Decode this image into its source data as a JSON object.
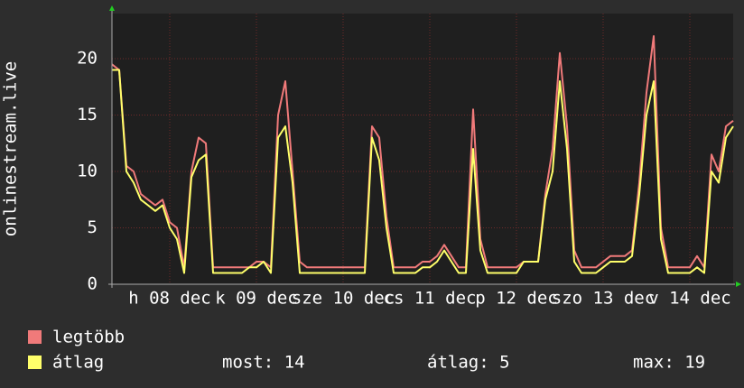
{
  "chart_data": {
    "type": "line",
    "y_label": "onlinestream.live",
    "x": [
      -4,
      -2,
      0,
      2,
      4,
      6,
      8,
      10,
      12,
      14,
      16,
      18,
      20,
      22,
      24,
      26,
      28,
      30,
      32,
      34,
      36,
      38,
      40,
      42,
      44,
      46,
      48,
      50,
      52,
      54,
      56,
      58,
      60,
      62,
      64,
      66,
      68,
      70,
      72,
      74,
      76,
      78,
      80,
      82,
      84,
      86,
      88,
      90,
      92,
      94,
      96,
      98,
      100,
      102,
      104,
      106,
      108,
      110,
      112,
      114,
      116,
      118,
      120,
      122,
      124,
      126,
      128,
      130,
      132,
      134,
      136,
      138,
      140,
      142,
      144,
      146,
      148,
      150,
      152,
      154,
      156,
      158,
      160,
      162,
      164,
      166,
      168
    ],
    "series": [
      {
        "name": "legtöbb",
        "color": "#f07a7a",
        "values": [
          19.5,
          19,
          10.5,
          10,
          8,
          7.5,
          7,
          7.5,
          5.5,
          5,
          1.5,
          10,
          13,
          12.5,
          1.5,
          1.5,
          1.5,
          1.5,
          1.5,
          1.5,
          2,
          2,
          1.5,
          15,
          18,
          10,
          2,
          1.5,
          1.5,
          1.5,
          1.5,
          1.5,
          1.5,
          1.5,
          1.5,
          1.5,
          14,
          13,
          6,
          1.5,
          1.5,
          1.5,
          1.5,
          2,
          2,
          2.5,
          3.5,
          2.5,
          1.5,
          1.5,
          15.5,
          4,
          1.5,
          1.5,
          1.5,
          1.5,
          1.5,
          2,
          2,
          2,
          8,
          12,
          20.5,
          14,
          3,
          1.5,
          1.5,
          1.5,
          2,
          2.5,
          2.5,
          2.5,
          3,
          9,
          17,
          22,
          5,
          1.5,
          1.5,
          1.5,
          1.5,
          2.5,
          1.5,
          11.5,
          10,
          14,
          14.5
        ]
      },
      {
        "name": "átlag",
        "color": "#ffff6a",
        "values": [
          19,
          19,
          10,
          9,
          7.5,
          7,
          6.5,
          7,
          5,
          4,
          1,
          9.5,
          11,
          11.5,
          1,
          1,
          1,
          1,
          1,
          1.5,
          1.5,
          2,
          1,
          13,
          14,
          9,
          1,
          1,
          1,
          1,
          1,
          1,
          1,
          1,
          1,
          1,
          13,
          11,
          5,
          1,
          1,
          1,
          1,
          1.5,
          1.5,
          2,
          3,
          2,
          1,
          1,
          12,
          3,
          1,
          1,
          1,
          1,
          1,
          2,
          2,
          2,
          7.5,
          10,
          18,
          12,
          2,
          1,
          1,
          1,
          1.5,
          2,
          2,
          2,
          2.5,
          8,
          15,
          18,
          4,
          1,
          1,
          1,
          1,
          1.5,
          1,
          10,
          9,
          13,
          14
        ]
      }
    ],
    "stats": [
      "most: 14",
      "átlag: 5",
      "max: 19"
    ],
    "xlim": [
      -4,
      168
    ],
    "xticks": [
      {
        "value": 12,
        "label": "h 08 dec"
      },
      {
        "value": 36,
        "label": "k 09 dec"
      },
      {
        "value": 60,
        "label": "sze 10 dec"
      },
      {
        "value": 84,
        "label": "cs 11 dec"
      },
      {
        "value": 108,
        "label": "p 12 dec"
      },
      {
        "value": 132,
        "label": "szo 13 dec"
      },
      {
        "value": 156,
        "label": "v 14 dec"
      }
    ],
    "ylim": [
      0,
      24
    ],
    "yticks": [
      0,
      5,
      10,
      15,
      20
    ],
    "grid": true
  }
}
